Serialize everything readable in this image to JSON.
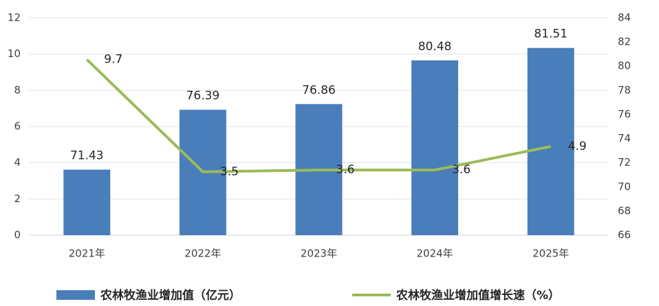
{
  "chart_data": {
    "type": "bar-line",
    "categories": [
      "2021年",
      "2022年",
      "2023年",
      "2024年",
      "2025年"
    ],
    "series": [
      {
        "name": "农林牧渔业增加值（亿元）",
        "type": "bar",
        "axis": "y2",
        "color": "#4a7ebb",
        "values": [
          71.43,
          76.39,
          76.86,
          80.48,
          81.51
        ]
      },
      {
        "name": "农林牧渔业增加值增长速（%）",
        "type": "line",
        "color": "#9bbb59",
        "values": [
          9.7,
          3.5,
          3.6,
          3.6,
          4.9
        ]
      }
    ],
    "ylim": [
      0,
      12
    ],
    "yticks": [
      0,
      2,
      4,
      6,
      8,
      10,
      12
    ],
    "y2lim": [
      66,
      84
    ],
    "y2ticks": [
      66,
      68,
      70,
      72,
      74,
      76,
      78,
      80,
      82,
      84
    ],
    "grid": true,
    "legend": "bottom"
  }
}
